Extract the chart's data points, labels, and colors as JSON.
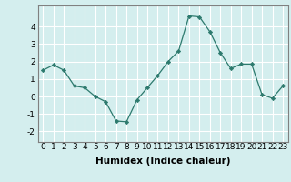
{
  "x": [
    0,
    1,
    2,
    3,
    4,
    5,
    6,
    7,
    8,
    9,
    10,
    11,
    12,
    13,
    14,
    15,
    16,
    17,
    18,
    19,
    20,
    21,
    22,
    23
  ],
  "y": [
    1.5,
    1.8,
    1.5,
    0.6,
    0.5,
    0.0,
    -0.3,
    -1.4,
    -1.45,
    -0.2,
    0.5,
    1.2,
    2.0,
    2.6,
    4.6,
    4.55,
    3.7,
    2.5,
    1.6,
    1.85,
    1.85,
    0.1,
    -0.1,
    0.6
  ],
  "xlabel": "Humidex (Indice chaleur)",
  "ylim": [
    -2.6,
    5.2
  ],
  "xlim": [
    -0.5,
    23.5
  ],
  "yticks": [
    -2,
    -1,
    0,
    1,
    2,
    3,
    4
  ],
  "xticks": [
    0,
    1,
    2,
    3,
    4,
    5,
    6,
    7,
    8,
    9,
    10,
    11,
    12,
    13,
    14,
    15,
    16,
    17,
    18,
    19,
    20,
    21,
    22,
    23
  ],
  "line_color": "#2d7a6e",
  "marker": "D",
  "marker_size": 2.2,
  "bg_color": "#d4eeee",
  "grid_color": "#ffffff",
  "axis_color": "#808080",
  "tick_fontsize": 6.5,
  "xlabel_fontsize": 7.5
}
